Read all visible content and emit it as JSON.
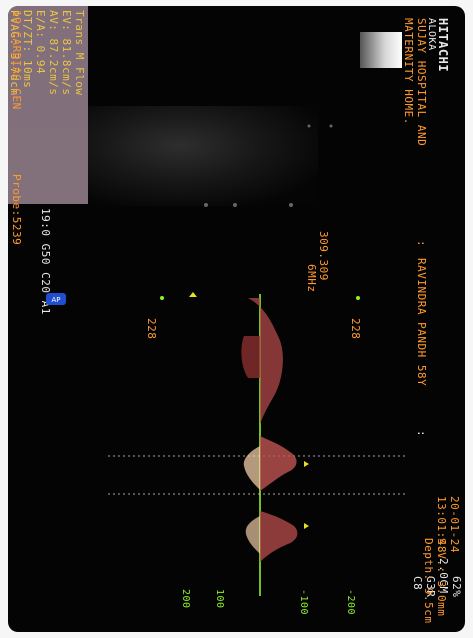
{
  "header": {
    "brand": "HITACHI",
    "brand_sub": "ALOKA",
    "hospital_line1": "SUJAY HOSPITAL AND",
    "hospital_line2": "MATERNITY HOME.",
    "colon": ":",
    "patient": "RAVINDRA PANDH 58Y",
    "date": "20-01-24",
    "time": "13:01:48"
  },
  "settings_right": {
    "line1": "62%",
    "line2": "2.0CM",
    "line3": "G3R",
    "line4": "C8"
  },
  "sample_volume": {
    "sv": "S.V.: 3.0mm",
    "depth": "Depth: 9.5cm"
  },
  "measurements": {
    "title": "Trans M Flow",
    "ev": "EV:  81.8cm/s",
    "av": "AV:  87.2cm/s",
    "ea": "E/A:   0.94",
    "dt": "DT/ZT:  10ms",
    "pgg": "PVAG: 3.7dcm",
    "gain_line": "19:0 G50 C20 A1"
  },
  "footer": {
    "preset": "19:CARDIAC GEN",
    "probe": "Probe:5239"
  },
  "doppler": {
    "prf": "309.309",
    "freq": "6MHz",
    "scale_top_left": "228",
    "scale_top_right": "228",
    "badge": "AP",
    "ticks": [
      "200",
      "100",
      "-100",
      "-200"
    ],
    "colors": {
      "baseline": "#8cf02a",
      "doppler_fill": "#b04848",
      "doppler_peak": "#ffe6c8",
      "text_orange": "#ff9a2e",
      "text_green": "#8cf02a"
    }
  }
}
